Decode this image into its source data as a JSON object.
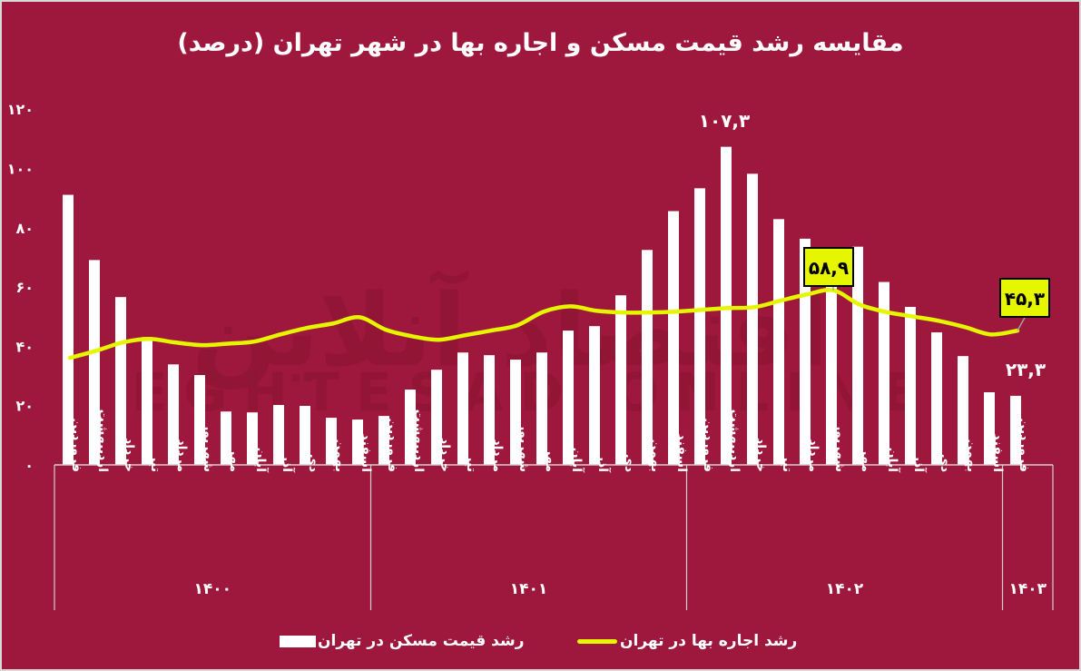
{
  "title": "مقایسه رشد قیمت مسکن و اجاره بها در شهر تهران (درصد)",
  "legend": {
    "bars_label": "رشد قیمت مسکن در تهران",
    "line_label": "رشد اجاره بها در تهران"
  },
  "colors": {
    "background": "#9e173c",
    "bars": "#ffffff",
    "line": "#e6f500",
    "annotation_box": "#e6f500"
  },
  "annotations": {
    "bar_max": "۱۰۷,۳",
    "bar_last": "۲۳,۳",
    "line_peak": "۵۸,۹",
    "line_last": "۴۵,۳"
  },
  "watermark": {
    "fa": "اقتصاد آنلاین",
    "en": "EGHTESAD ONLINE"
  },
  "chart_data": {
    "type": "bar",
    "title": "مقایسه رشد قیمت مسکن و اجاره بها در شهر تهران (درصد)",
    "xlabel": "",
    "ylabel": "",
    "ylim": [
      0,
      120
    ],
    "yticks": [
      0,
      20,
      40,
      60,
      80,
      100,
      120
    ],
    "ytick_labels": [
      "۰",
      "۲۰",
      "۴۰",
      "۶۰",
      "۸۰",
      "۱۰۰",
      "۱۲۰"
    ],
    "grid": false,
    "legend_position": "bottom",
    "groups": [
      {
        "year": "۱۴۰۰",
        "count": 12
      },
      {
        "year": "۱۴۰۱",
        "count": 12
      },
      {
        "year": "۱۴۰۲",
        "count": 12
      },
      {
        "year": "۱۴۰۳",
        "count": 1
      }
    ],
    "categories": [
      "فروردین",
      "اردیبهشت",
      "خرداد",
      "تیر",
      "مرداد",
      "شهریور",
      "مهر",
      "آبان",
      "آذر",
      "دی",
      "بهمن",
      "اسفند",
      "فروردین",
      "اردیبهشت",
      "خرداد",
      "تیر",
      "مرداد",
      "شهریور",
      "مهر",
      "آبان",
      "آذر",
      "دی",
      "بهمن",
      "اسفند",
      "فروردین",
      "اردیبهشت",
      "خرداد",
      "تیر",
      "مرداد",
      "شهریور",
      "مهر",
      "آبان",
      "آذر",
      "دی",
      "بهمن",
      "اسفند",
      "فروردین"
    ],
    "series": [
      {
        "name": "رشد قیمت مسکن در تهران",
        "type": "bar",
        "values": [
          91.1,
          69.1,
          56.6,
          43.1,
          33.9,
          30.3,
          18.0,
          17.7,
          20.2,
          19.9,
          15.9,
          15.3,
          16.5,
          25.4,
          32.1,
          37.9,
          37.0,
          35.5,
          37.9,
          45.3,
          46.8,
          57.2,
          72.5,
          85.6,
          93.3,
          107.3,
          98.2,
          82.9,
          76.3,
          70.0,
          73.6,
          61.7,
          53.3,
          44.7,
          36.7,
          24.5,
          23.3
        ]
      },
      {
        "name": "رشد اجاره بها در تهران",
        "type": "line",
        "values": [
          36.1,
          38.5,
          41.3,
          42.5,
          41.3,
          40.4,
          40.9,
          41.6,
          44.0,
          46.2,
          47.7,
          49.8,
          45.6,
          43.4,
          42.2,
          43.7,
          45.3,
          47.1,
          51.7,
          53.5,
          52.0,
          51.4,
          51.4,
          51.7,
          52.3,
          52.9,
          53.2,
          55.4,
          57.5,
          58.9,
          54.1,
          51.6,
          50.1,
          48.6,
          46.5,
          44.0,
          45.3
        ]
      }
    ],
    "data_labels": [
      {
        "series": 0,
        "index": 25,
        "text": "۱۰۷,۳"
      },
      {
        "series": 0,
        "index": 36,
        "text": "۲۳,۳"
      },
      {
        "series": 1,
        "index": 29,
        "text": "۵۸,۹"
      },
      {
        "series": 1,
        "index": 36,
        "text": "۴۵,۳"
      }
    ]
  }
}
